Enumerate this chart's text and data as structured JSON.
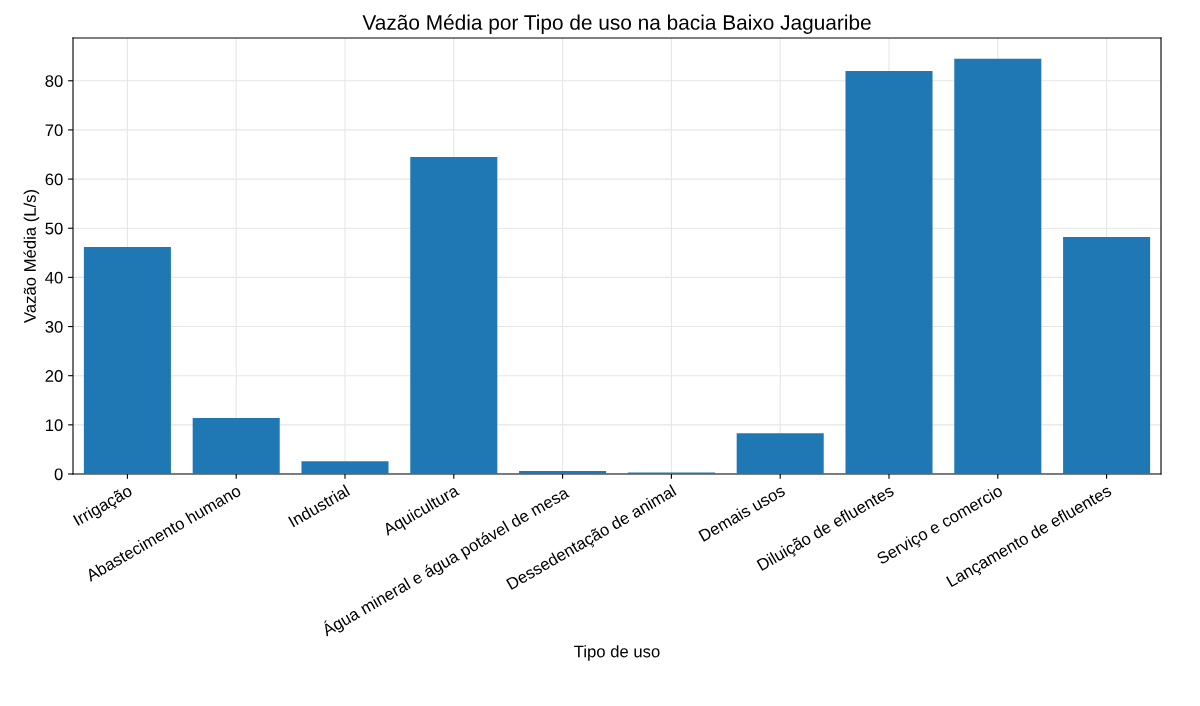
{
  "chart_data": {
    "type": "bar",
    "title": "Vazão Média por Tipo de uso na bacia Baixo Jaguaribe",
    "xlabel": "Tipo de uso",
    "ylabel": "Vazão Média (L/s)",
    "categories": [
      "Irrigação",
      "Abastecimento humano",
      "Industrial",
      "Aquicultura",
      "Água mineral e água potável de mesa",
      "Dessedentação de animal",
      "Demais usos",
      "Diluição de efluentes",
      "Serviço e comercio",
      "Lançamento de efluentes"
    ],
    "values": [
      46.2,
      11.4,
      2.6,
      64.5,
      0.6,
      0.3,
      8.3,
      82.0,
      84.5,
      48.2
    ],
    "color": "#1f77b4",
    "ylim": [
      0,
      88.7
    ],
    "yticks": [
      0,
      10,
      20,
      30,
      40,
      50,
      60,
      70,
      80
    ],
    "grid": true
  }
}
